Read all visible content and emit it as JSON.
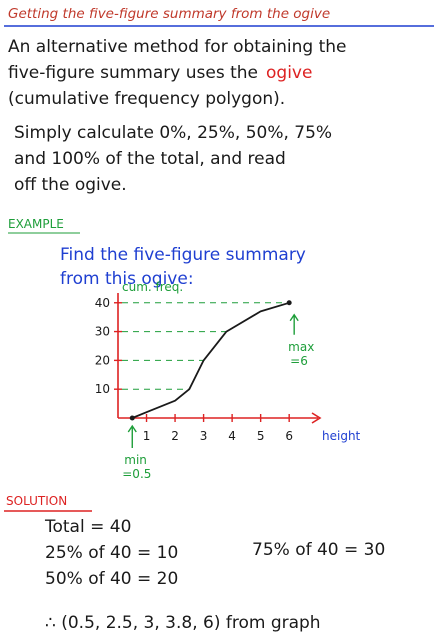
{
  "header": {
    "title": "Getting the five-figure summary from the ogive"
  },
  "intro": {
    "lines": [
      "An alternative method for obtaining the",
      "five-figure summary uses the",
      "(cumulative frequency polygon)."
    ],
    "keyword": "ogive"
  },
  "method": {
    "lines": [
      "Simply calculate 0%, 25%, 50%, 75%",
      "and 100% of the total, and read",
      "off the ogive."
    ]
  },
  "example": {
    "label": "EXAMPLE",
    "lines": [
      "Find the five-figure summary",
      "from this ogive:"
    ]
  },
  "chart_data": {
    "type": "line",
    "y_label": "cum. freq.",
    "x_label": "height",
    "x": [
      0.5,
      1,
      2,
      2.5,
      3,
      3.8,
      5,
      6
    ],
    "values": [
      0,
      2,
      6,
      10,
      20,
      30,
      37,
      40
    ],
    "color": "#1a1a1a",
    "xlim": [
      0,
      6.8
    ],
    "ylim": [
      0,
      42
    ],
    "xticks": [
      1,
      2,
      3,
      4,
      5,
      6
    ],
    "yticks": [
      10,
      20,
      30,
      40
    ],
    "grid": true,
    "annotations": {
      "min": {
        "label": "min",
        "value_label": "=0.5"
      },
      "max": {
        "label": "max",
        "value_label": "=6"
      }
    }
  },
  "solution": {
    "label": "SOLUTION",
    "lines": [
      "Total = 40",
      "25% of 40 = 10",
      "50% of 40 = 20",
      "75% of 40 = 30",
      "∴ (0.5, 2.5, 3, 3.8, 6) from graph"
    ]
  }
}
